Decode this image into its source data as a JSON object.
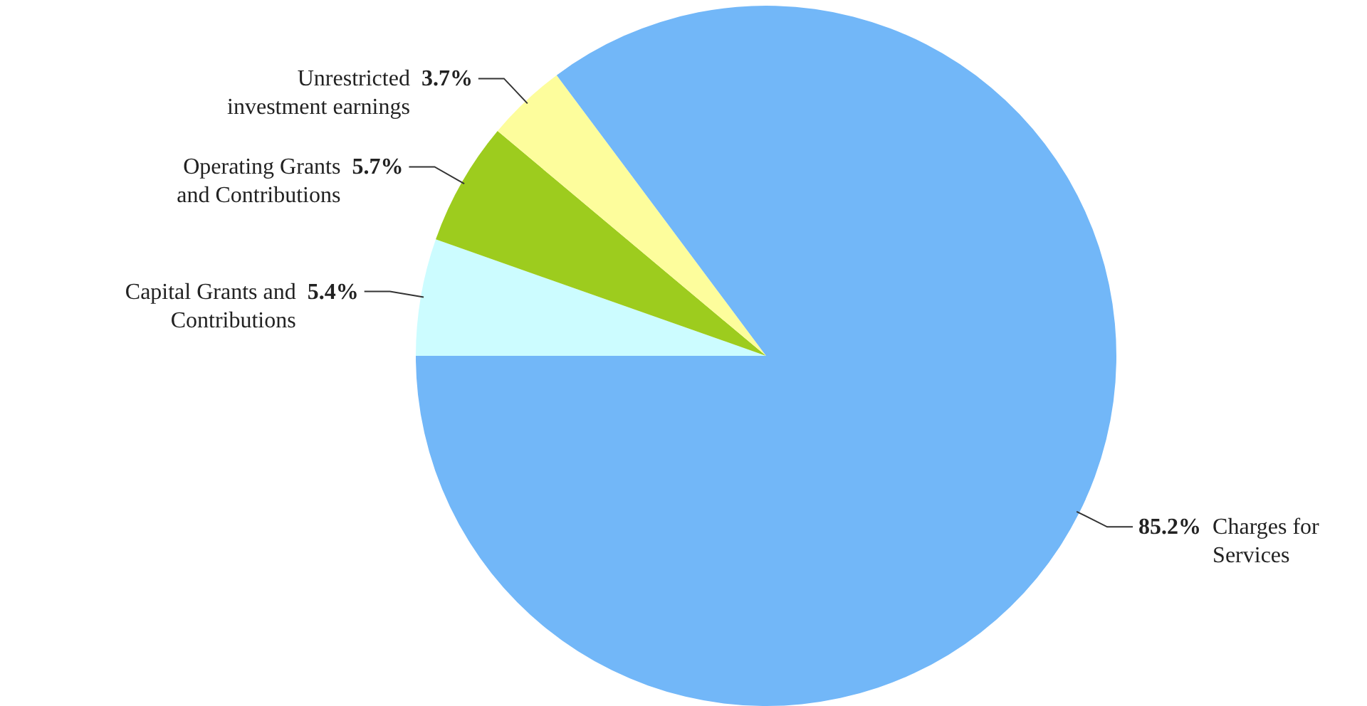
{
  "chart_data": {
    "type": "pie",
    "categories": [
      "Capital Grants and Contributions",
      "Operating Grants and Contributions",
      "Unrestricted investment earnings",
      "Charges for Services"
    ],
    "values": [
      5.4,
      5.7,
      3.7,
      85.2
    ],
    "colors": [
      "#ccfcff",
      "#9dcc1e",
      "#fdfd9c",
      "#72b7f8"
    ],
    "value_labels": [
      "5.4%",
      "5.7%",
      "3.7%",
      "85.2%"
    ]
  }
}
